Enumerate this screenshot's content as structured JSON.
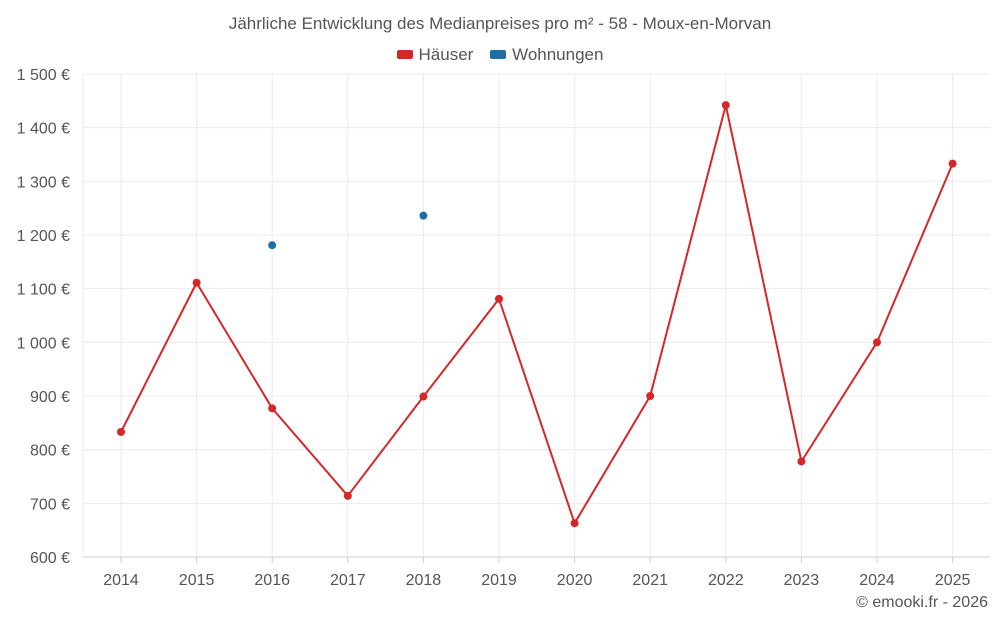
{
  "title": "Jährliche Entwicklung des Medianpreises pro m² - 58 - Moux-en-Morvan",
  "copyright": "© emooki.fr - 2026",
  "chart_data": {
    "type": "line",
    "title": "Jährliche Entwicklung des Medianpreises pro m² - 58 - Moux-en-Morvan",
    "xlabel": "",
    "ylabel": "",
    "categories": [
      "2014",
      "2015",
      "2016",
      "2017",
      "2018",
      "2019",
      "2020",
      "2021",
      "2022",
      "2023",
      "2024",
      "2025"
    ],
    "ylim": [
      600,
      1500
    ],
    "yticks": [
      600,
      700,
      800,
      900,
      1000,
      1100,
      1200,
      1300,
      1400,
      1500
    ],
    "ytick_labels": [
      "600 €",
      "700 €",
      "800 €",
      "900 €",
      "1 000 €",
      "1 100 €",
      "1 200 €",
      "1 300 €",
      "1 400 €",
      "1 500 €"
    ],
    "grid": true,
    "legend_position": "top-center",
    "series": [
      {
        "name": "Häuser",
        "color": "#d62728",
        "style": "line-with-markers",
        "values": [
          833,
          1111,
          877,
          714,
          899,
          1081,
          663,
          900,
          1442,
          778,
          1000,
          1333
        ]
      },
      {
        "name": "Wohnungen",
        "color": "#1f6fa5",
        "style": "markers",
        "values": [
          null,
          null,
          1181,
          null,
          1236,
          null,
          null,
          null,
          null,
          null,
          null,
          null
        ]
      }
    ]
  }
}
